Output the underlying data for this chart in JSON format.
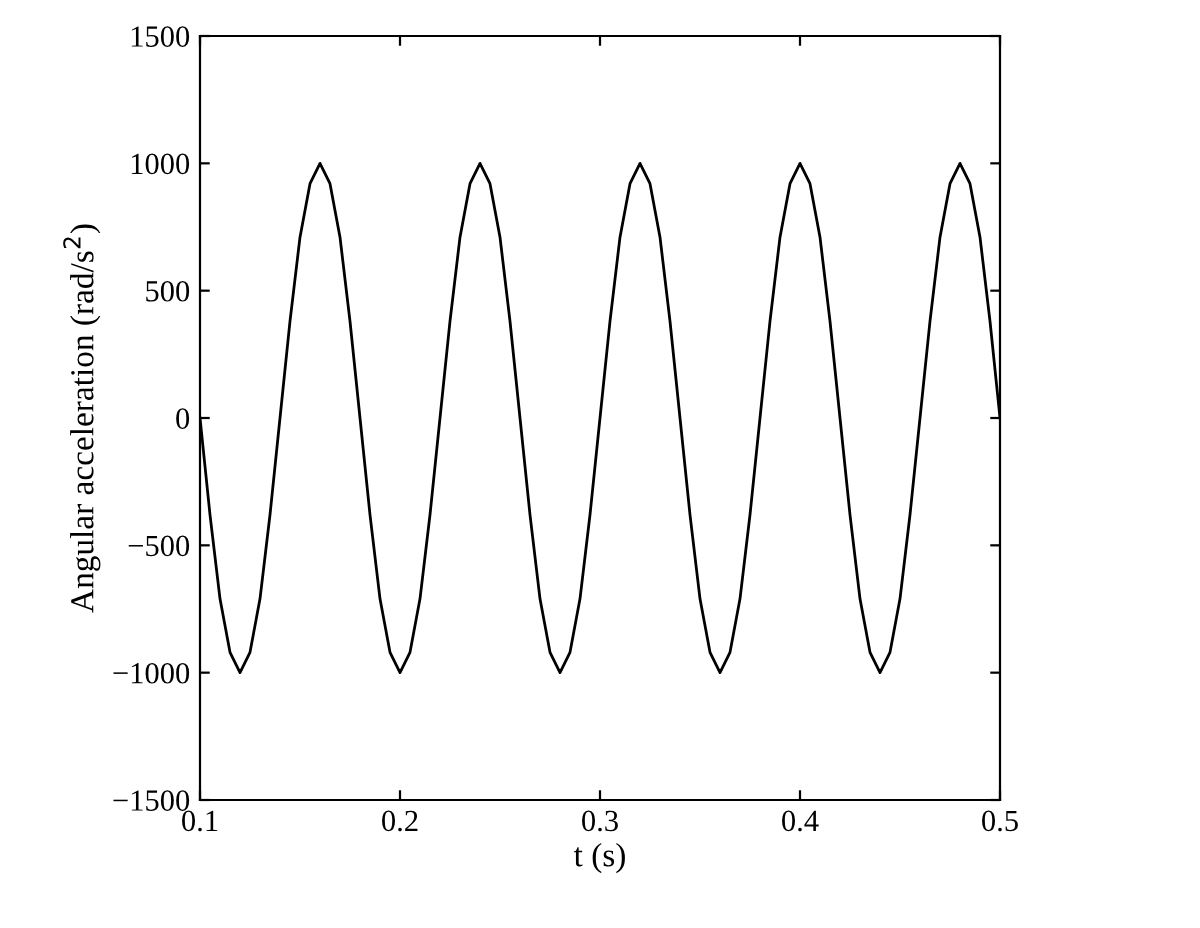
{
  "chart_data": {
    "type": "line",
    "xlabel": "t (s)",
    "ylabel": "Angular acceleration (rad/s$^{2}$)",
    "x": [
      0.1,
      0.105,
      0.11,
      0.115,
      0.12,
      0.125,
      0.13,
      0.135,
      0.14,
      0.145,
      0.15,
      0.155,
      0.16,
      0.165,
      0.17,
      0.175,
      0.18,
      0.185,
      0.19,
      0.195,
      0.2,
      0.205,
      0.21,
      0.215,
      0.22,
      0.225,
      0.23,
      0.235,
      0.24,
      0.245,
      0.25,
      0.255,
      0.26,
      0.265,
      0.27,
      0.275,
      0.28,
      0.285,
      0.29,
      0.295,
      0.3,
      0.305,
      0.31,
      0.315,
      0.32,
      0.325,
      0.33,
      0.335,
      0.34,
      0.345,
      0.35,
      0.355,
      0.36,
      0.365,
      0.37,
      0.375,
      0.38,
      0.385,
      0.39,
      0.395,
      0.4,
      0.405,
      0.41,
      0.415,
      0.42,
      0.425,
      0.43,
      0.435,
      0.44,
      0.445,
      0.45,
      0.455,
      0.46,
      0.465,
      0.47,
      0.475,
      0.48,
      0.485,
      0.49,
      0.495,
      0.5
    ],
    "series": [
      {
        "color": "#000000",
        "values": [
          0,
          -380,
          -710,
          -920,
          -1000,
          -920,
          -710,
          -380,
          0,
          380,
          710,
          920,
          1000,
          920,
          710,
          380,
          0,
          -380,
          -710,
          -920,
          -1000,
          -920,
          -710,
          -380,
          0,
          380,
          710,
          920,
          1000,
          920,
          710,
          380,
          0,
          -380,
          -710,
          -920,
          -1000,
          -920,
          -710,
          -380,
          0,
          380,
          710,
          920,
          1000,
          920,
          710,
          380,
          0,
          -380,
          -710,
          -920,
          -1000,
          -920,
          -710,
          -380,
          0,
          380,
          710,
          920,
          1000,
          920,
          710,
          380,
          0,
          -380,
          -710,
          -920,
          -1000,
          -920,
          -710,
          -380,
          0,
          380,
          710,
          920,
          1000,
          920,
          710,
          380,
          0
        ]
      }
    ],
    "xlim": [
      0.1,
      0.5
    ],
    "xticks": [
      0.1,
      0.2,
      0.3,
      0.4,
      0.5
    ],
    "ylim": [
      -1500,
      1500
    ],
    "yticks": [
      -1500,
      -1000,
      -500,
      0,
      500,
      1000,
      1500
    ],
    "grid": false,
    "legend": false,
    "marker": "none",
    "line_style": "solid"
  }
}
